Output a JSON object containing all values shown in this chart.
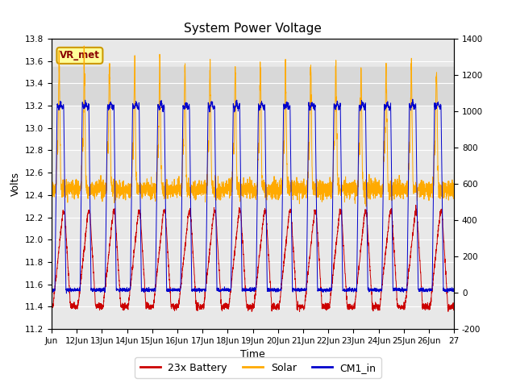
{
  "title": "System Power Voltage",
  "xlabel": "Time",
  "ylabel_left": "Volts",
  "ylim_left": [
    11.2,
    13.8
  ],
  "ylim_right": [
    -200,
    1400
  ],
  "y_ticks_left": [
    11.2,
    11.4,
    11.6,
    11.8,
    12.0,
    12.2,
    12.4,
    12.6,
    12.8,
    13.0,
    13.2,
    13.4,
    13.6,
    13.8
  ],
  "y_ticks_right": [
    -200,
    0,
    200,
    400,
    600,
    800,
    1000,
    1200,
    1400
  ],
  "x_tick_labels": [
    "Jun",
    "12Jun",
    "13Jun",
    "14Jun",
    "15Jun",
    "16Jun",
    "17Jun",
    "18Jun",
    "19Jun",
    "20Jun",
    "21Jun",
    "22Jun",
    "23Jun",
    "24Jun",
    "25Jun",
    "26Jun",
    "27"
  ],
  "colors": {
    "battery": "#cc0000",
    "solar": "#ffaa00",
    "cm1": "#0000cc",
    "plot_bg": "#e8e8e8",
    "fig_bg": "#ffffff",
    "grid": "#ffffff",
    "shaded": "#d8d8d8",
    "annotation_box_face": "#ffff99",
    "annotation_box_edge": "#cc9900",
    "annotation_text": "#880000"
  },
  "legend_labels": [
    "23x Battery",
    "Solar",
    "CM1_in"
  ],
  "annotation_text": "VR_met",
  "shaded_region": [
    13.2,
    13.55
  ],
  "seed": 42
}
